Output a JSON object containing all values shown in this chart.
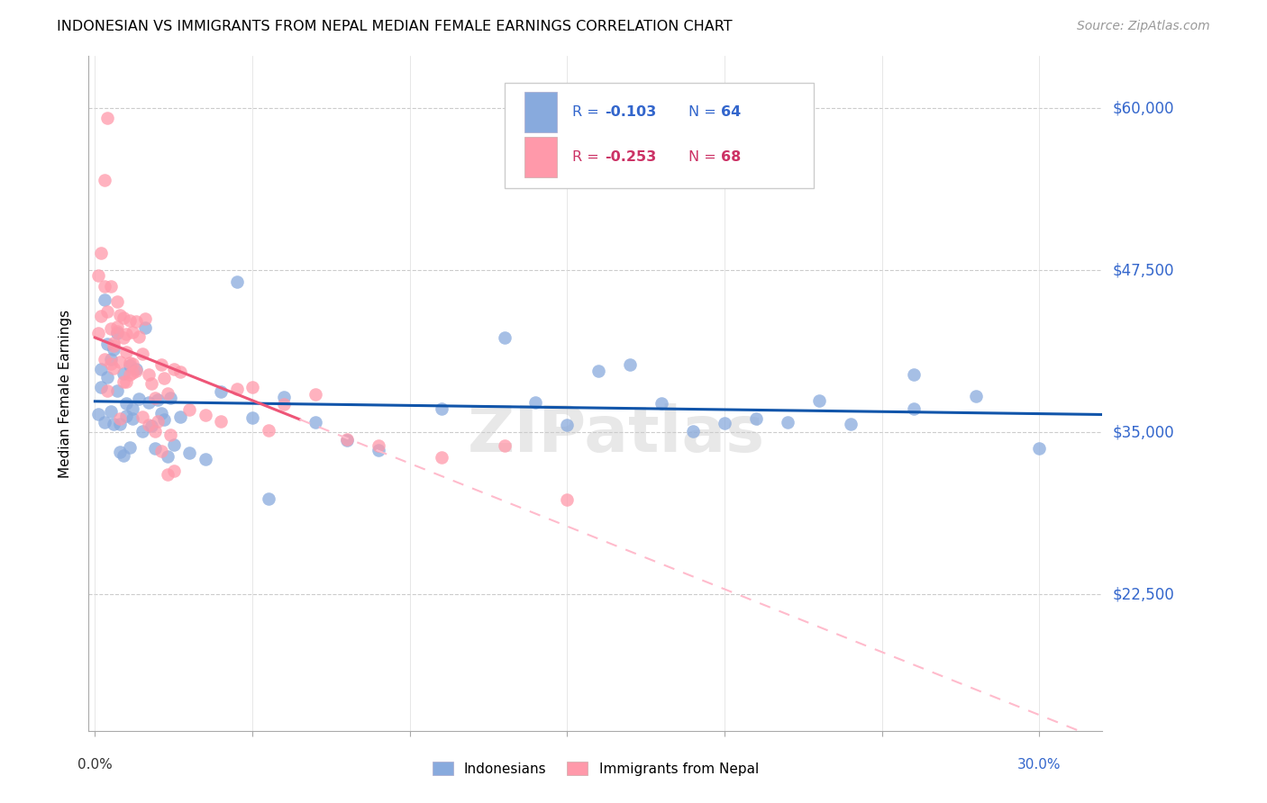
{
  "title": "INDONESIAN VS IMMIGRANTS FROM NEPAL MEDIAN FEMALE EARNINGS CORRELATION CHART",
  "source": "Source: ZipAtlas.com",
  "ylabel": "Median Female Earnings",
  "ytick_labels": [
    "$60,000",
    "$47,500",
    "$35,000",
    "$22,500"
  ],
  "ytick_values": [
    60000,
    47500,
    35000,
    22500
  ],
  "ymin": 12000,
  "ymax": 64000,
  "xmin": -0.002,
  "xmax": 0.32,
  "color_blue": "#88AADD",
  "color_pink": "#FF99AA",
  "color_blue_line": "#1155AA",
  "color_pink_line": "#EE5577",
  "color_pink_dashed": "#FFBBCC",
  "legend_label1": "Indonesians",
  "legend_label2": "Immigrants from Nepal",
  "watermark": "ZIPatlas",
  "indo_seed": 12,
  "nepal_seed": 34,
  "indonesian_x": [
    0.001,
    0.002,
    0.002,
    0.003,
    0.003,
    0.004,
    0.004,
    0.005,
    0.005,
    0.006,
    0.006,
    0.007,
    0.007,
    0.008,
    0.008,
    0.009,
    0.009,
    0.01,
    0.01,
    0.011,
    0.011,
    0.012,
    0.012,
    0.013,
    0.014,
    0.015,
    0.016,
    0.017,
    0.018,
    0.019,
    0.02,
    0.021,
    0.022,
    0.023,
    0.024,
    0.025,
    0.027,
    0.03,
    0.035,
    0.04,
    0.045,
    0.05,
    0.055,
    0.06,
    0.07,
    0.08,
    0.09,
    0.11,
    0.13,
    0.15,
    0.17,
    0.2,
    0.23,
    0.26,
    0.28,
    0.3,
    0.14,
    0.16,
    0.18,
    0.22,
    0.24,
    0.26,
    0.19,
    0.21
  ],
  "indonesian_y": [
    36000,
    40000,
    38000,
    44000,
    36000,
    42000,
    38000,
    40000,
    37000,
    41000,
    36000,
    43000,
    38000,
    35000,
    37000,
    40000,
    34000,
    36000,
    38000,
    35000,
    39000,
    37000,
    36000,
    41000,
    38000,
    35000,
    44000,
    37000,
    36000,
    34000,
    38000,
    35000,
    36000,
    34000,
    37000,
    35000,
    36000,
    35000,
    34000,
    38000,
    46000,
    36000,
    30000,
    38000,
    37000,
    35000,
    34000,
    36000,
    42000,
    37000,
    40000,
    36000,
    38000,
    39000,
    37000,
    33000,
    38000,
    40000,
    37000,
    35000,
    36000,
    37000,
    36000,
    37000
  ],
  "nepal_x": [
    0.001,
    0.001,
    0.002,
    0.002,
    0.003,
    0.003,
    0.004,
    0.004,
    0.005,
    0.005,
    0.006,
    0.006,
    0.007,
    0.007,
    0.008,
    0.008,
    0.009,
    0.009,
    0.01,
    0.01,
    0.011,
    0.011,
    0.012,
    0.012,
    0.013,
    0.014,
    0.015,
    0.016,
    0.017,
    0.018,
    0.019,
    0.02,
    0.021,
    0.022,
    0.023,
    0.024,
    0.025,
    0.027,
    0.03,
    0.035,
    0.04,
    0.045,
    0.05,
    0.055,
    0.06,
    0.07,
    0.08,
    0.09,
    0.11,
    0.13,
    0.15,
    0.004,
    0.006,
    0.008,
    0.01,
    0.012,
    0.003,
    0.005,
    0.007,
    0.009,
    0.011,
    0.013,
    0.015,
    0.017,
    0.019,
    0.021,
    0.023,
    0.025
  ],
  "nepal_y": [
    42000,
    46000,
    44000,
    48000,
    46000,
    55000,
    44000,
    58000,
    43000,
    45000,
    44000,
    41000,
    45000,
    43000,
    44000,
    42000,
    44000,
    42000,
    40000,
    43000,
    41000,
    44000,
    42000,
    40000,
    44000,
    42000,
    41000,
    43000,
    40000,
    39000,
    38000,
    37000,
    40000,
    39000,
    38000,
    35000,
    41000,
    40000,
    37000,
    37000,
    36000,
    38000,
    37000,
    35000,
    37000,
    38000,
    36000,
    34000,
    33000,
    32000,
    30000,
    38000,
    40000,
    37000,
    38000,
    39000,
    40000,
    41000,
    42000,
    40000,
    39000,
    38000,
    37000,
    36000,
    35000,
    34000,
    33000,
    32000
  ]
}
